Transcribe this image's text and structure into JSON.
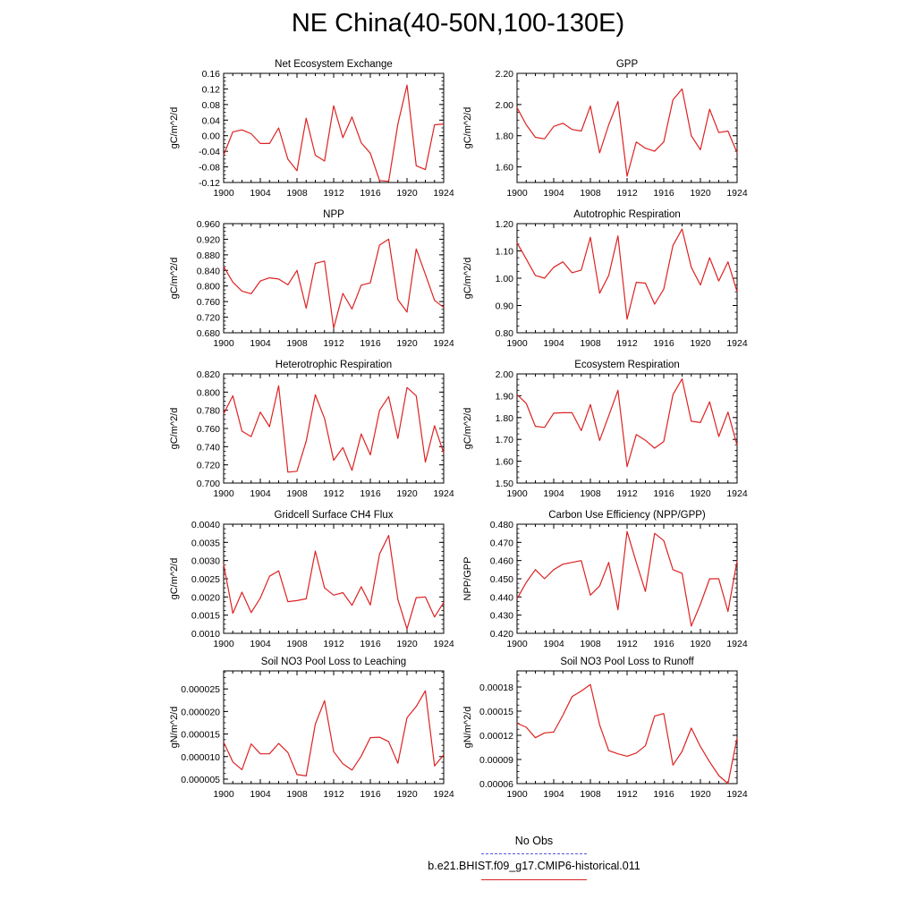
{
  "title": "NE China(40-50N,100-130E)",
  "legend": {
    "obs_label": "No Obs",
    "obs_color": "#5555dd",
    "model_label": "b.e21.BHIST.f09_g17.CMIP6-historical.011",
    "model_color": "#dd2222"
  },
  "chart_data": [
    {
      "type": "line",
      "title": "Net Ecosystem Exchange",
      "ylabel": "gC/m^2/d",
      "xlim": [
        1900,
        1924
      ],
      "ylim": [
        -0.12,
        0.16
      ],
      "xticks": [
        "1900",
        "1904",
        "1908",
        "1912",
        "1916",
        "1920",
        "1924"
      ],
      "yticks": [
        "0.16",
        "0.12",
        "0.08",
        "0.04",
        "0.00",
        "-0.04",
        "-0.08",
        "-0.12"
      ],
      "x": [
        1900,
        1901,
        1902,
        1903,
        1904,
        1905,
        1906,
        1907,
        1908,
        1909,
        1910,
        1911,
        1912,
        1913,
        1914,
        1915,
        1916,
        1917,
        1918,
        1919,
        1920,
        1921,
        1922,
        1923,
        1924
      ],
      "series": [
        {
          "values": [
            -0.05,
            0.01,
            0.015,
            0.005,
            -0.02,
            -0.02,
            0.02,
            -0.06,
            -0.09,
            0.045,
            -0.05,
            -0.065,
            0.077,
            -0.005,
            0.048,
            -0.018,
            -0.045,
            -0.115,
            -0.117,
            0.03,
            0.13,
            -0.077,
            -0.087,
            0.028,
            0.03
          ]
        }
      ]
    },
    {
      "type": "line",
      "title": "GPP",
      "ylabel": "gC/m^2/d",
      "xlim": [
        1900,
        1924
      ],
      "ylim": [
        1.5,
        2.2
      ],
      "xticks": [
        "1900",
        "1904",
        "1908",
        "1912",
        "1916",
        "1920",
        "1924"
      ],
      "yticks": [
        "2.20",
        "2.00",
        "1.80",
        "1.60"
      ],
      "x": [
        1900,
        1901,
        1902,
        1903,
        1904,
        1905,
        1906,
        1907,
        1908,
        1909,
        1910,
        1911,
        1912,
        1913,
        1914,
        1915,
        1916,
        1917,
        1918,
        1919,
        1920,
        1921,
        1922,
        1923,
        1924
      ],
      "series": [
        {
          "values": [
            1.98,
            1.87,
            1.79,
            1.78,
            1.86,
            1.88,
            1.84,
            1.83,
            1.99,
            1.69,
            1.87,
            2.02,
            1.54,
            1.76,
            1.72,
            1.7,
            1.76,
            2.03,
            2.1,
            1.8,
            1.71,
            1.97,
            1.82,
            1.83,
            1.69
          ]
        }
      ]
    },
    {
      "type": "line",
      "title": "NPP",
      "ylabel": "gC/m^2/d",
      "xlim": [
        1900,
        1924
      ],
      "ylim": [
        0.68,
        0.96
      ],
      "xticks": [
        "1900",
        "1904",
        "1908",
        "1912",
        "1916",
        "1920",
        "1924"
      ],
      "yticks": [
        "0.960",
        "0.920",
        "0.880",
        "0.840",
        "0.800",
        "0.760",
        "0.720",
        "0.680"
      ],
      "x": [
        1900,
        1901,
        1902,
        1903,
        1904,
        1905,
        1906,
        1907,
        1908,
        1909,
        1910,
        1911,
        1912,
        1913,
        1914,
        1915,
        1916,
        1917,
        1918,
        1919,
        1920,
        1921,
        1922,
        1923,
        1924
      ],
      "series": [
        {
          "values": [
            0.85,
            0.81,
            0.787,
            0.78,
            0.813,
            0.821,
            0.818,
            0.803,
            0.84,
            0.743,
            0.858,
            0.864,
            0.692,
            0.781,
            0.741,
            0.802,
            0.808,
            0.905,
            0.92,
            0.765,
            0.733,
            0.895,
            0.83,
            0.763,
            0.745
          ]
        }
      ]
    },
    {
      "type": "line",
      "title": "Autotrophic Respiration",
      "ylabel": "gC/m^2/d",
      "xlim": [
        1900,
        1924
      ],
      "ylim": [
        0.8,
        1.2
      ],
      "xticks": [
        "1900",
        "1904",
        "1908",
        "1912",
        "1916",
        "1920",
        "1924"
      ],
      "yticks": [
        "1.20",
        "1.10",
        "1.00",
        "0.90",
        "0.80"
      ],
      "x": [
        1900,
        1901,
        1902,
        1903,
        1904,
        1905,
        1906,
        1907,
        1908,
        1909,
        1910,
        1911,
        1912,
        1913,
        1914,
        1915,
        1916,
        1917,
        1918,
        1919,
        1920,
        1921,
        1922,
        1923,
        1924
      ],
      "series": [
        {
          "values": [
            1.13,
            1.07,
            1.01,
            1.0,
            1.04,
            1.06,
            1.02,
            1.03,
            1.15,
            0.945,
            1.01,
            1.155,
            0.85,
            0.985,
            0.982,
            0.905,
            0.96,
            1.12,
            1.18,
            1.04,
            0.975,
            1.075,
            0.99,
            1.06,
            0.95
          ]
        }
      ]
    },
    {
      "type": "line",
      "title": "Heterotrophic Respiration",
      "ylabel": "gC/m^2/d",
      "xlim": [
        1900,
        1924
      ],
      "ylim": [
        0.7,
        0.82
      ],
      "xticks": [
        "1900",
        "1904",
        "1908",
        "1912",
        "1916",
        "1920",
        "1924"
      ],
      "yticks": [
        "0.820",
        "0.800",
        "0.780",
        "0.760",
        "0.740",
        "0.720",
        "0.700"
      ],
      "x": [
        1900,
        1901,
        1902,
        1903,
        1904,
        1905,
        1906,
        1907,
        1908,
        1909,
        1910,
        1911,
        1912,
        1913,
        1914,
        1915,
        1916,
        1917,
        1918,
        1919,
        1920,
        1921,
        1922,
        1923,
        1924
      ],
      "series": [
        {
          "values": [
            0.776,
            0.796,
            0.757,
            0.751,
            0.778,
            0.762,
            0.807,
            0.712,
            0.713,
            0.746,
            0.797,
            0.771,
            0.725,
            0.739,
            0.714,
            0.754,
            0.731,
            0.78,
            0.795,
            0.749,
            0.805,
            0.796,
            0.723,
            0.763,
            0.733
          ]
        }
      ]
    },
    {
      "type": "line",
      "title": "Ecosystem Respiration",
      "ylabel": "gC/m^2/d",
      "xlim": [
        1900,
        1924
      ],
      "ylim": [
        1.5,
        2.0
      ],
      "xticks": [
        "1900",
        "1904",
        "1908",
        "1912",
        "1916",
        "1920",
        "1924"
      ],
      "yticks": [
        "2.00",
        "1.90",
        "1.80",
        "1.70",
        "1.60",
        "1.50"
      ],
      "x": [
        1900,
        1901,
        1902,
        1903,
        1904,
        1905,
        1906,
        1907,
        1908,
        1909,
        1910,
        1911,
        1912,
        1913,
        1914,
        1915,
        1916,
        1917,
        1918,
        1919,
        1920,
        1921,
        1922,
        1923,
        1924
      ],
      "series": [
        {
          "values": [
            1.905,
            1.865,
            1.76,
            1.755,
            1.82,
            1.822,
            1.822,
            1.74,
            1.86,
            1.695,
            1.808,
            1.925,
            1.575,
            1.722,
            1.696,
            1.66,
            1.69,
            1.905,
            1.977,
            1.783,
            1.777,
            1.872,
            1.713,
            1.825,
            1.673
          ]
        }
      ]
    },
    {
      "type": "line",
      "title": "Gridcell Surface CH4 Flux",
      "ylabel": "gC/m^2/d",
      "xlim": [
        1900,
        1924
      ],
      "ylim": [
        0.001,
        0.004
      ],
      "xticks": [
        "1900",
        "1904",
        "1908",
        "1912",
        "1916",
        "1920",
        "1924"
      ],
      "yticks": [
        "0.0040",
        "0.0035",
        "0.0030",
        "0.0025",
        "0.0020",
        "0.0015",
        "0.0010"
      ],
      "x": [
        1900,
        1901,
        1902,
        1903,
        1904,
        1905,
        1906,
        1907,
        1908,
        1909,
        1910,
        1911,
        1912,
        1913,
        1914,
        1915,
        1916,
        1917,
        1918,
        1919,
        1920,
        1921,
        1922,
        1923,
        1924
      ],
      "series": [
        {
          "values": [
            0.0029,
            0.00155,
            0.00213,
            0.00157,
            0.00197,
            0.00257,
            0.00272,
            0.00187,
            0.0019,
            0.00195,
            0.00326,
            0.00225,
            0.00205,
            0.00212,
            0.00177,
            0.00228,
            0.00178,
            0.00318,
            0.00369,
            0.00193,
            0.00112,
            0.00198,
            0.002,
            0.00145,
            0.00185
          ]
        }
      ]
    },
    {
      "type": "line",
      "title": "Carbon Use Efficiency (NPP/GPP)",
      "ylabel": "NPP/GPP",
      "xlim": [
        1900,
        1924
      ],
      "ylim": [
        0.42,
        0.48
      ],
      "xticks": [
        "1900",
        "1904",
        "1908",
        "1912",
        "1916",
        "1920",
        "1924"
      ],
      "yticks": [
        "0.480",
        "0.470",
        "0.460",
        "0.450",
        "0.440",
        "0.430",
        "0.420"
      ],
      "x": [
        1900,
        1901,
        1902,
        1903,
        1904,
        1905,
        1906,
        1907,
        1908,
        1909,
        1910,
        1911,
        1912,
        1913,
        1914,
        1915,
        1916,
        1917,
        1918,
        1919,
        1920,
        1921,
        1922,
        1923,
        1924
      ],
      "series": [
        {
          "values": [
            0.439,
            0.448,
            0.455,
            0.45,
            0.455,
            0.458,
            0.459,
            0.46,
            0.441,
            0.446,
            0.459,
            0.433,
            0.476,
            0.459,
            0.443,
            0.475,
            0.471,
            0.455,
            0.453,
            0.424,
            0.436,
            0.45,
            0.45,
            0.432,
            0.46
          ]
        }
      ]
    },
    {
      "type": "line",
      "title": "Soil NO3 Pool Loss to Leaching",
      "ylabel": "gN/m^2/d",
      "xlim": [
        1900,
        1924
      ],
      "ylim": [
        4e-06,
        2.9e-05
      ],
      "xticks": [
        "1900",
        "1904",
        "1908",
        "1912",
        "1916",
        "1920",
        "1924"
      ],
      "yticks": [
        "0.000025",
        "0.000020",
        "0.000015",
        "0.000010",
        "0.000005"
      ],
      "x": [
        1900,
        1901,
        1902,
        1903,
        1904,
        1905,
        1906,
        1907,
        1908,
        1909,
        1910,
        1911,
        1912,
        1913,
        1914,
        1915,
        1916,
        1917,
        1918,
        1919,
        1920,
        1921,
        1922,
        1923,
        1924
      ],
      "series": [
        {
          "values": [
            1.32e-05,
            8.8e-06,
            7.1e-06,
            1.28e-05,
            1.06e-05,
            1.06e-05,
            1.29e-05,
            1.09e-05,
            6e-06,
            5.7e-06,
            1.72e-05,
            2.24e-05,
            1.11e-05,
            8.4e-06,
            7e-06,
            1.01e-05,
            1.42e-05,
            1.43e-05,
            1.33e-05,
            8.5e-06,
            1.86e-05,
            2.11e-05,
            2.46e-05,
            7.9e-06,
            1.04e-05
          ]
        }
      ]
    },
    {
      "type": "line",
      "title": "Soil NO3 Pool Loss to Runoff",
      "ylabel": "gN/m^2/d",
      "xlim": [
        1900,
        1924
      ],
      "ylim": [
        6e-05,
        0.0002
      ],
      "xticks": [
        "1900",
        "1904",
        "1908",
        "1912",
        "1916",
        "1920",
        "1924"
      ],
      "yticks": [
        "0.00018",
        "0.00015",
        "0.00012",
        "0.00009",
        "0.00006"
      ],
      "x": [
        1900,
        1901,
        1902,
        1903,
        1904,
        1905,
        1906,
        1907,
        1908,
        1909,
        1910,
        1911,
        1912,
        1913,
        1914,
        1915,
        1916,
        1917,
        1918,
        1919,
        1920,
        1921,
        1922,
        1923,
        1924
      ],
      "series": [
        {
          "values": [
            0.000135,
            0.00013,
            0.000117,
            0.000123,
            0.000124,
            0.000145,
            0.000168,
            0.000175,
            0.000183,
            0.000133,
            0.000101,
            9.7e-05,
            9.4e-05,
            9.8e-05,
            0.000107,
            0.000144,
            0.000147,
            8.3e-05,
            0.0001,
            0.000129,
            0.000106,
            8.7e-05,
            7e-05,
            6e-05,
            0.000117
          ]
        }
      ]
    }
  ]
}
